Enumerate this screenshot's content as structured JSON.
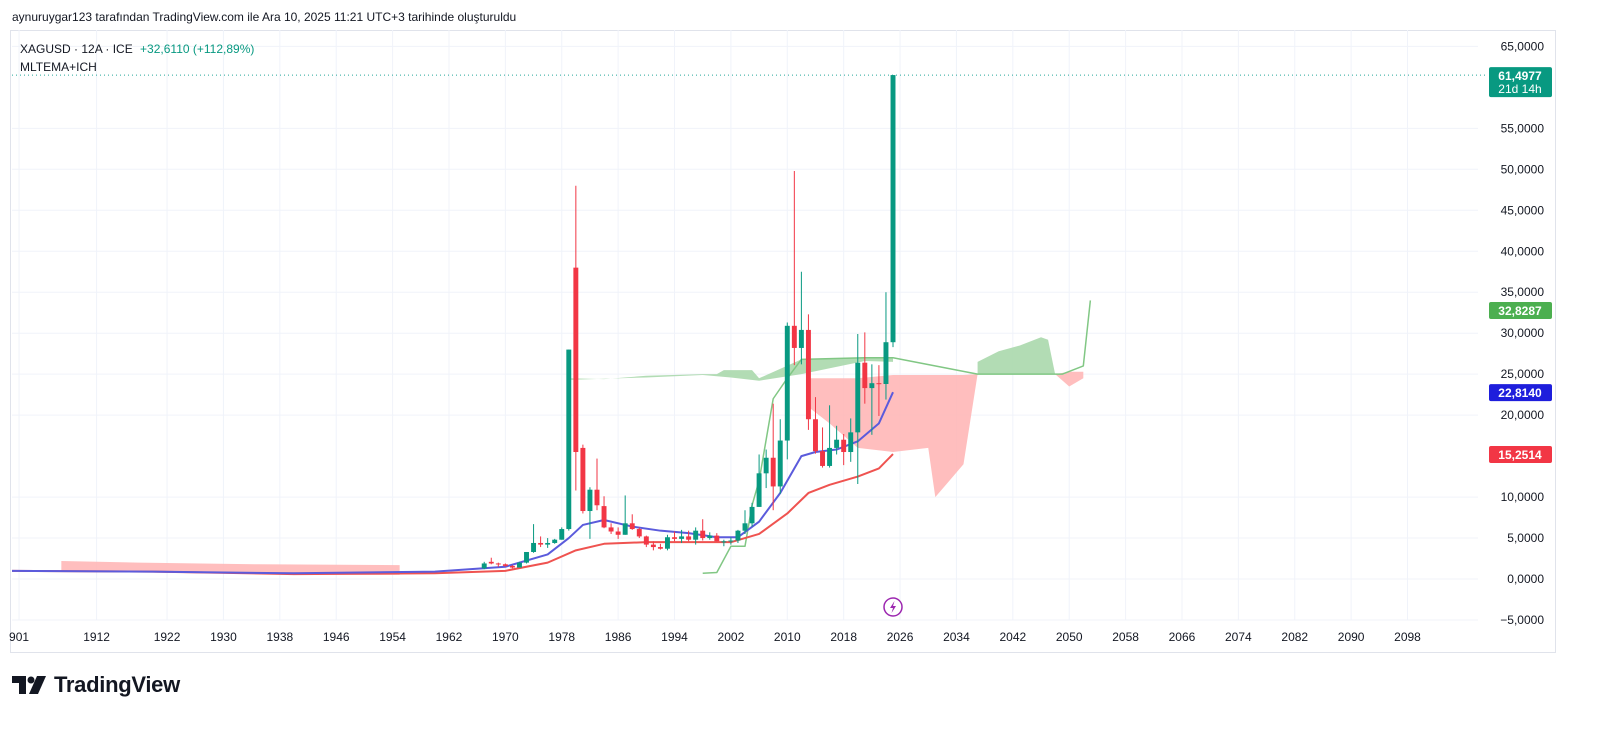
{
  "header": {
    "caption": "aynuruygar123 tarafından TradingView.com ile Ara 10, 2025 11:21 UTC+3 tarihinde oluşturuldu"
  },
  "legend": {
    "symbol": "XAGUSD · 12A · ICE",
    "change": "+32,6110 (+112,89%)",
    "indicator": "MLTEMA+ICH"
  },
  "footer": {
    "brand": "TradingView",
    "logo_icon": "tradingview-logo-icon"
  },
  "colors": {
    "up": "#089981",
    "down": "#f23645",
    "price_line": "#26a69a",
    "ema_fast": "#5b5bdc",
    "ema_slow": "#ef5350",
    "cloud_bull": "#a5d6a7",
    "cloud_bear": "#ffb3b3",
    "lead_line": "#81c784",
    "event_icon": "#9c27b0"
  },
  "chart_data": {
    "type": "candlestick",
    "title": "",
    "xlabel": "",
    "ylabel": "",
    "ylim": [
      -5,
      67
    ],
    "xlim": [
      1900,
      2108
    ],
    "yticks": [
      "65,0000",
      "55,0000",
      "50,0000",
      "45,0000",
      "40,0000",
      "35,0000",
      "30,0000",
      "25,0000",
      "20,0000",
      "10,0000",
      "5,0000",
      "0,0000",
      "−5,0000"
    ],
    "ytick_values": [
      65,
      55,
      50,
      45,
      40,
      35,
      30,
      25,
      20,
      10,
      5,
      0,
      -5
    ],
    "xticks": [
      "901",
      "1912",
      "1922",
      "1930",
      "1938",
      "1946",
      "1954",
      "1962",
      "1970",
      "1978",
      "1986",
      "1994",
      "2002",
      "2010",
      "2018",
      "2026",
      "2034",
      "2042",
      "2050",
      "2058",
      "2066",
      "2074",
      "2082",
      "2090",
      "2098"
    ],
    "xtick_values": [
      1901,
      1912,
      1922,
      1930,
      1938,
      1946,
      1954,
      1962,
      1970,
      1978,
      1986,
      1994,
      2002,
      2010,
      2018,
      2026,
      2034,
      2042,
      2050,
      2058,
      2066,
      2074,
      2082,
      2090,
      2098
    ],
    "grid": true,
    "candles": [
      {
        "t": 1967,
        "o": 1.3,
        "h": 2.1,
        "l": 1.2,
        "c": 1.9
      },
      {
        "t": 1968,
        "o": 2.1,
        "h": 2.6,
        "l": 1.8,
        "c": 1.9
      },
      {
        "t": 1969,
        "o": 1.9,
        "h": 2.0,
        "l": 1.5,
        "c": 1.8
      },
      {
        "t": 1970,
        "o": 1.8,
        "h": 1.9,
        "l": 1.5,
        "c": 1.6
      },
      {
        "t": 1971,
        "o": 1.6,
        "h": 1.7,
        "l": 1.3,
        "c": 1.4
      },
      {
        "t": 1972,
        "o": 1.4,
        "h": 2.1,
        "l": 1.4,
        "c": 2.0
      },
      {
        "t": 1973,
        "o": 2.0,
        "h": 3.3,
        "l": 1.9,
        "c": 3.3
      },
      {
        "t": 1974,
        "o": 3.3,
        "h": 6.7,
        "l": 3.2,
        "c": 4.4
      },
      {
        "t": 1975,
        "o": 4.4,
        "h": 5.2,
        "l": 3.9,
        "c": 4.2
      },
      {
        "t": 1976,
        "o": 4.2,
        "h": 5.0,
        "l": 3.8,
        "c": 4.4
      },
      {
        "t": 1977,
        "o": 4.4,
        "h": 4.9,
        "l": 4.3,
        "c": 4.8
      },
      {
        "t": 1978,
        "o": 4.8,
        "h": 6.3,
        "l": 4.8,
        "c": 6.1
      },
      {
        "t": 1979,
        "o": 6.1,
        "h": 28.0,
        "l": 5.9,
        "c": 28.0
      },
      {
        "t": 1980,
        "o": 38.0,
        "h": 48.0,
        "l": 10.8,
        "c": 15.5
      },
      {
        "t": 1981,
        "o": 16.0,
        "h": 16.4,
        "l": 8.0,
        "c": 8.3
      },
      {
        "t": 1982,
        "o": 8.3,
        "h": 11.2,
        "l": 4.9,
        "c": 10.9
      },
      {
        "t": 1983,
        "o": 10.9,
        "h": 14.7,
        "l": 8.4,
        "c": 9.0
      },
      {
        "t": 1984,
        "o": 8.9,
        "h": 10.1,
        "l": 6.2,
        "c": 6.3
      },
      {
        "t": 1985,
        "o": 6.3,
        "h": 6.8,
        "l": 5.5,
        "c": 5.8
      },
      {
        "t": 1986,
        "o": 5.8,
        "h": 6.3,
        "l": 4.9,
        "c": 5.4
      },
      {
        "t": 1987,
        "o": 5.4,
        "h": 10.2,
        "l": 5.4,
        "c": 6.8
      },
      {
        "t": 1988,
        "o": 6.8,
        "h": 7.9,
        "l": 6.0,
        "c": 6.1
      },
      {
        "t": 1989,
        "o": 6.1,
        "h": 6.3,
        "l": 5.0,
        "c": 5.2
      },
      {
        "t": 1990,
        "o": 5.2,
        "h": 5.3,
        "l": 3.9,
        "c": 4.2
      },
      {
        "t": 1991,
        "o": 4.2,
        "h": 4.6,
        "l": 3.5,
        "c": 3.9
      },
      {
        "t": 1992,
        "o": 3.9,
        "h": 4.3,
        "l": 3.6,
        "c": 3.7
      },
      {
        "t": 1993,
        "o": 3.7,
        "h": 5.4,
        "l": 3.5,
        "c": 5.1
      },
      {
        "t": 1994,
        "o": 5.1,
        "h": 5.8,
        "l": 4.6,
        "c": 4.9
      },
      {
        "t": 1995,
        "o": 4.9,
        "h": 6.0,
        "l": 4.4,
        "c": 5.2
      },
      {
        "t": 1996,
        "o": 5.2,
        "h": 5.9,
        "l": 4.6,
        "c": 4.8
      },
      {
        "t": 1997,
        "o": 4.8,
        "h": 6.3,
        "l": 4.2,
        "c": 5.9
      },
      {
        "t": 1998,
        "o": 5.9,
        "h": 7.3,
        "l": 4.7,
        "c": 5.0
      },
      {
        "t": 1999,
        "o": 5.0,
        "h": 5.7,
        "l": 4.8,
        "c": 5.3
      },
      {
        "t": 2000,
        "o": 5.3,
        "h": 5.6,
        "l": 4.6,
        "c": 4.6
      },
      {
        "t": 2001,
        "o": 4.6,
        "h": 4.8,
        "l": 4.0,
        "c": 4.6
      },
      {
        "t": 2002,
        "o": 4.6,
        "h": 5.1,
        "l": 4.2,
        "c": 4.7
      },
      {
        "t": 2003,
        "o": 4.7,
        "h": 6.0,
        "l": 4.4,
        "c": 5.9
      },
      {
        "t": 2004,
        "o": 5.9,
        "h": 8.4,
        "l": 5.5,
        "c": 6.8
      },
      {
        "t": 2005,
        "o": 6.8,
        "h": 9.3,
        "l": 6.4,
        "c": 8.8
      },
      {
        "t": 2006,
        "o": 8.8,
        "h": 15.2,
        "l": 8.8,
        "c": 12.9
      },
      {
        "t": 2007,
        "o": 12.9,
        "h": 15.8,
        "l": 11.1,
        "c": 14.8
      },
      {
        "t": 2008,
        "o": 14.8,
        "h": 21.4,
        "l": 8.4,
        "c": 11.3
      },
      {
        "t": 2009,
        "o": 11.3,
        "h": 19.5,
        "l": 10.4,
        "c": 16.9
      },
      {
        "t": 2010,
        "o": 16.9,
        "h": 31.3,
        "l": 14.6,
        "c": 30.9
      },
      {
        "t": 2011,
        "o": 30.9,
        "h": 49.8,
        "l": 26.1,
        "c": 28.2
      },
      {
        "t": 2012,
        "o": 28.2,
        "h": 37.5,
        "l": 26.2,
        "c": 30.4
      },
      {
        "t": 2013,
        "o": 30.4,
        "h": 32.3,
        "l": 18.2,
        "c": 19.5
      },
      {
        "t": 2014,
        "o": 19.5,
        "h": 22.2,
        "l": 15.3,
        "c": 15.6
      },
      {
        "t": 2015,
        "o": 15.6,
        "h": 18.5,
        "l": 13.6,
        "c": 13.8
      },
      {
        "t": 2016,
        "o": 13.8,
        "h": 21.2,
        "l": 13.6,
        "c": 16.0
      },
      {
        "t": 2017,
        "o": 16.0,
        "h": 18.7,
        "l": 15.2,
        "c": 17.0
      },
      {
        "t": 2018,
        "o": 17.0,
        "h": 17.7,
        "l": 13.9,
        "c": 15.5
      },
      {
        "t": 2019,
        "o": 15.5,
        "h": 19.6,
        "l": 14.3,
        "c": 17.9
      },
      {
        "t": 2020,
        "o": 17.9,
        "h": 29.9,
        "l": 11.6,
        "c": 26.4
      },
      {
        "t": 2021,
        "o": 26.4,
        "h": 30.1,
        "l": 21.4,
        "c": 23.3
      },
      {
        "t": 2022,
        "o": 23.3,
        "h": 26.2,
        "l": 17.6,
        "c": 23.9
      },
      {
        "t": 2023,
        "o": 23.9,
        "h": 26.1,
        "l": 19.9,
        "c": 23.8
      },
      {
        "t": 2024,
        "o": 23.8,
        "h": 35.0,
        "l": 21.9,
        "c": 28.9
      },
      {
        "t": 2025,
        "o": 28.9,
        "h": 61.5,
        "l": 28.3,
        "c": 61.5
      }
    ],
    "ema_fast": {
      "name": "",
      "points": [
        [
          1900,
          1.0
        ],
        [
          1920,
          0.9
        ],
        [
          1940,
          0.7
        ],
        [
          1960,
          0.9
        ],
        [
          1970,
          1.5
        ],
        [
          1976,
          3.0
        ],
        [
          1979,
          5.0
        ],
        [
          1981,
          6.6
        ],
        [
          1984,
          7.2
        ],
        [
          1988,
          6.4
        ],
        [
          1992,
          5.9
        ],
        [
          1996,
          5.6
        ],
        [
          2000,
          5.1
        ],
        [
          2003,
          5.1
        ],
        [
          2006,
          7.0
        ],
        [
          2009,
          10.5
        ],
        [
          2012,
          15.0
        ],
        [
          2014,
          15.5
        ],
        [
          2017,
          15.8
        ],
        [
          2020,
          16.8
        ],
        [
          2023,
          19.0
        ],
        [
          2025,
          22.8
        ]
      ]
    },
    "ema_slow": {
      "name": "",
      "points": [
        [
          1900,
          1.0
        ],
        [
          1920,
          0.9
        ],
        [
          1940,
          0.6
        ],
        [
          1960,
          0.7
        ],
        [
          1970,
          1.0
        ],
        [
          1976,
          2.0
        ],
        [
          1980,
          3.5
        ],
        [
          1984,
          4.3
        ],
        [
          1990,
          4.5
        ],
        [
          1996,
          4.5
        ],
        [
          2002,
          4.5
        ],
        [
          2006,
          5.5
        ],
        [
          2010,
          8.0
        ],
        [
          2013,
          10.5
        ],
        [
          2016,
          11.5
        ],
        [
          2020,
          12.5
        ],
        [
          2023,
          13.5
        ],
        [
          2025,
          15.25
        ]
      ]
    },
    "bull_cloud": [
      {
        "top": [
          [
            1979,
            24.5
          ],
          [
            1984,
            24.4
          ],
          [
            1990,
            24.8
          ],
          [
            1998,
            25.0
          ],
          [
            2000,
            25.0
          ],
          [
            2001,
            25.5
          ],
          [
            2005,
            25.5
          ],
          [
            2006,
            24.5
          ],
          [
            2012,
            26.8
          ],
          [
            2021,
            27.0
          ],
          [
            2025,
            27.0
          ]
        ],
        "bottom": [
          [
            1979,
            24.3
          ],
          [
            1990,
            24.6
          ],
          [
            1998,
            24.9
          ],
          [
            2002,
            24.6
          ],
          [
            2006,
            24.2
          ],
          [
            2012,
            25.0
          ],
          [
            2021,
            26.6
          ],
          [
            2025,
            26.5
          ]
        ]
      },
      {
        "top": [
          [
            2037,
            26.5
          ],
          [
            2040,
            27.8
          ],
          [
            2043,
            28.5
          ],
          [
            2046,
            29.5
          ],
          [
            2047,
            29.2
          ],
          [
            2048,
            25.0
          ]
        ],
        "bottom": [
          [
            2037,
            25.0
          ],
          [
            2048,
            25.0
          ]
        ]
      }
    ],
    "bear_cloud": [
      {
        "top": [
          [
            1907,
            2.2
          ],
          [
            1918,
            2.0
          ],
          [
            1935,
            1.8
          ],
          [
            1955,
            1.7
          ]
        ],
        "bottom": [
          [
            1907,
            1.0
          ],
          [
            1918,
            0.9
          ],
          [
            1935,
            0.6
          ],
          [
            1955,
            0.5
          ]
        ]
      },
      {
        "top": [
          [
            2013,
            24.5
          ],
          [
            2020,
            24.5
          ],
          [
            2025,
            24.9
          ],
          [
            2030,
            24.9
          ],
          [
            2035,
            24.9
          ],
          [
            2037,
            25.0
          ]
        ],
        "bottom": [
          [
            2013,
            21.0
          ],
          [
            2016,
            19.0
          ],
          [
            2020,
            16.0
          ],
          [
            2025,
            15.5
          ],
          [
            2030,
            16.0
          ],
          [
            2031,
            10.0
          ],
          [
            2033,
            12.0
          ],
          [
            2035,
            14.0
          ],
          [
            2037,
            25.0
          ]
        ]
      },
      {
        "top": [
          [
            2048,
            25.0
          ],
          [
            2050,
            25.3
          ],
          [
            2052,
            25.3
          ]
        ],
        "bottom": [
          [
            2048,
            25.0
          ],
          [
            2050,
            23.5
          ],
          [
            2052,
            24.5
          ]
        ]
      }
    ],
    "lead_line": {
      "name": "",
      "points": [
        [
          1998,
          0.7
        ],
        [
          2000,
          0.8
        ],
        [
          2002,
          4.0
        ],
        [
          2004,
          4.0
        ],
        [
          2005,
          9.0
        ],
        [
          2006,
          12.0
        ],
        [
          2008,
          22.0
        ],
        [
          2010,
          24.5
        ],
        [
          2012,
          26.8
        ],
        [
          2021,
          27.0
        ],
        [
          2025,
          27.0
        ],
        [
          2037,
          25.0
        ],
        [
          2049,
          25.0
        ],
        [
          2052,
          26.0
        ],
        [
          2053,
          34.0
        ]
      ]
    },
    "price_line": 61.4977,
    "price_labels": [
      {
        "value": 61.4977,
        "text": "61,4977",
        "sub": "21d 14h",
        "color": "#089981"
      },
      {
        "value": 32.8287,
        "text": "32,8287",
        "sub": "",
        "color": "#4caf50"
      },
      {
        "value": 22.814,
        "text": "22,8140",
        "sub": "",
        "color": "#1e1edc"
      },
      {
        "value": 15.2514,
        "text": "15,2514",
        "sub": "",
        "color": "#f23645"
      }
    ],
    "event_marker": {
      "t": 2025,
      "icon": "lightning-icon"
    }
  }
}
